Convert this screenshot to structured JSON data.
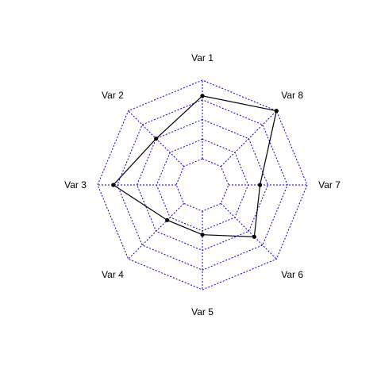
{
  "chart_data": {
    "type": "radar",
    "variables": [
      "Var 1",
      "Var 2",
      "Var 3",
      "Var 4",
      "Var 5",
      "Var 6",
      "Var 7",
      "Var 8"
    ],
    "series": [
      {
        "values": [
          0.8,
          0.5,
          0.8,
          0.3,
          0.3,
          0.6,
          0.4,
          1.0
        ]
      }
    ],
    "center_offset": 0.25,
    "grid_levels": 5,
    "range": [
      0,
      1
    ],
    "grid_color": "#0000cc",
    "series_color": "#000000"
  }
}
